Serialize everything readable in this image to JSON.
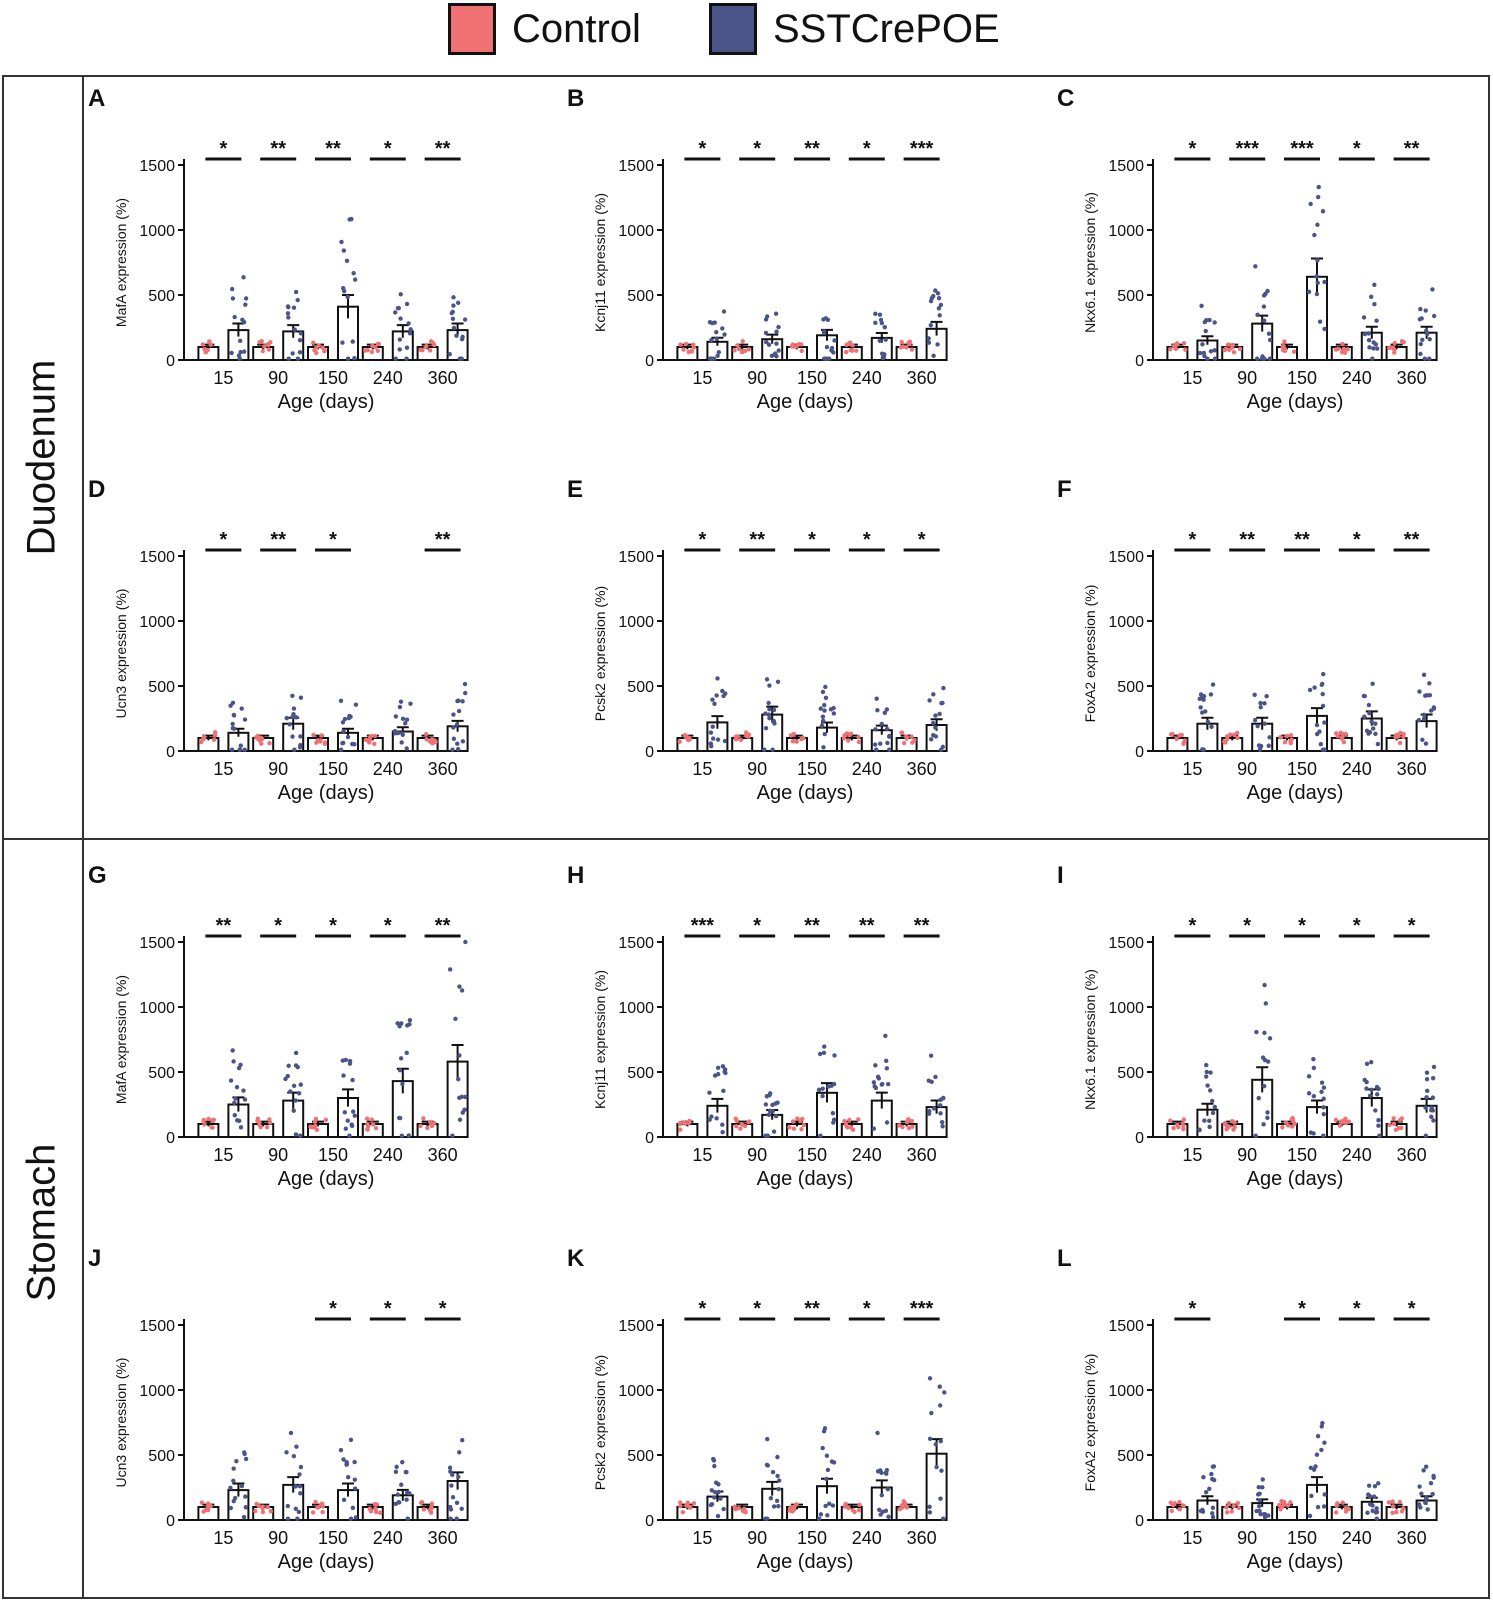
{
  "legend": {
    "items": [
      {
        "label": "Control",
        "color": "#f07174"
      },
      {
        "label": "SSTCrePOE",
        "color": "#4a5488"
      }
    ]
  },
  "sections": {
    "duodenum": "Duodenum",
    "stomach": "Stomach"
  },
  "chart_data": [
    {
      "panel": "A",
      "type": "bar",
      "title": "",
      "ylabel": "MafA expression (%)",
      "xlabel": "Age (days)",
      "categories": [
        "15",
        "90",
        "150",
        "240",
        "360"
      ],
      "ylim": [
        0,
        1500
      ],
      "yticks": [
        0,
        500,
        1000,
        1500
      ],
      "series": [
        {
          "name": "Control",
          "values": [
            100,
            100,
            100,
            100,
            100
          ]
        },
        {
          "name": "SSTCrePOE",
          "values": [
            230,
            220,
            410,
            220,
            230
          ]
        }
      ],
      "significance": [
        "*",
        "**",
        "**",
        "*",
        "**"
      ]
    },
    {
      "panel": "B",
      "type": "bar",
      "title": "",
      "ylabel": "Kcnj11 expression (%)",
      "xlabel": "Age (days)",
      "categories": [
        "15",
        "90",
        "150",
        "240",
        "360"
      ],
      "ylim": [
        0,
        1500
      ],
      "yticks": [
        0,
        500,
        1000,
        1500
      ],
      "series": [
        {
          "name": "Control",
          "values": [
            100,
            100,
            100,
            100,
            100
          ]
        },
        {
          "name": "SSTCrePOE",
          "values": [
            140,
            160,
            190,
            170,
            240
          ]
        }
      ],
      "significance": [
        "*",
        "*",
        "**",
        "*",
        "***"
      ]
    },
    {
      "panel": "C",
      "type": "bar",
      "title": "",
      "ylabel": "Nkx6.1 expression (%)",
      "xlabel": "Age (days)",
      "categories": [
        "15",
        "90",
        "150",
        "240",
        "360"
      ],
      "ylim": [
        0,
        1500
      ],
      "yticks": [
        0,
        500,
        1000,
        1500
      ],
      "series": [
        {
          "name": "Control",
          "values": [
            100,
            100,
            100,
            100,
            100
          ]
        },
        {
          "name": "SSTCrePOE",
          "values": [
            150,
            280,
            640,
            210,
            210
          ]
        }
      ],
      "significance": [
        "*",
        "***",
        "***",
        "*",
        "**"
      ]
    },
    {
      "panel": "D",
      "type": "bar",
      "title": "",
      "ylabel": "Ucn3 expression (%)",
      "xlabel": "Age (days)",
      "categories": [
        "15",
        "90",
        "150",
        "240",
        "360"
      ],
      "ylim": [
        0,
        1500
      ],
      "yticks": [
        0,
        500,
        1000,
        1500
      ],
      "series": [
        {
          "name": "Control",
          "values": [
            100,
            100,
            100,
            100,
            100
          ]
        },
        {
          "name": "SSTCrePOE",
          "values": [
            140,
            210,
            140,
            150,
            190
          ]
        }
      ],
      "significance": [
        "*",
        "**",
        "*",
        "",
        "**"
      ]
    },
    {
      "panel": "E",
      "type": "bar",
      "title": "",
      "ylabel": "Pcsk2 expression (%)",
      "xlabel": "Age (days)",
      "categories": [
        "15",
        "90",
        "150",
        "240",
        "360"
      ],
      "ylim": [
        0,
        1500
      ],
      "yticks": [
        0,
        500,
        1000,
        1500
      ],
      "series": [
        {
          "name": "Control",
          "values": [
            100,
            100,
            100,
            100,
            100
          ]
        },
        {
          "name": "SSTCrePOE",
          "values": [
            220,
            280,
            180,
            160,
            200
          ]
        }
      ],
      "significance": [
        "*",
        "**",
        "*",
        "*",
        "*"
      ]
    },
    {
      "panel": "F",
      "type": "bar",
      "title": "",
      "ylabel": "FoxA2 expression (%)",
      "xlabel": "Age (days)",
      "categories": [
        "15",
        "90",
        "150",
        "240",
        "360"
      ],
      "ylim": [
        0,
        1500
      ],
      "yticks": [
        0,
        500,
        1000,
        1500
      ],
      "series": [
        {
          "name": "Control",
          "values": [
            100,
            100,
            100,
            100,
            100
          ]
        },
        {
          "name": "SSTCrePOE",
          "values": [
            210,
            210,
            270,
            250,
            230
          ]
        }
      ],
      "significance": [
        "*",
        "**",
        "**",
        "*",
        "**"
      ]
    },
    {
      "panel": "G",
      "type": "bar",
      "title": "",
      "ylabel": "MafA expression (%)",
      "xlabel": "Age (days)",
      "categories": [
        "15",
        "90",
        "150",
        "240",
        "360"
      ],
      "ylim": [
        0,
        1500
      ],
      "yticks": [
        0,
        500,
        1000,
        1500
      ],
      "series": [
        {
          "name": "Control",
          "values": [
            100,
            100,
            100,
            100,
            100
          ]
        },
        {
          "name": "SSTCrePOE",
          "values": [
            250,
            280,
            300,
            430,
            580
          ]
        }
      ],
      "significance": [
        "**",
        "*",
        "*",
        "*",
        "**"
      ]
    },
    {
      "panel": "H",
      "type": "bar",
      "title": "",
      "ylabel": "Kcnj11 expression (%)",
      "xlabel": "Age (days)",
      "categories": [
        "15",
        "90",
        "150",
        "240",
        "360"
      ],
      "ylim": [
        0,
        1500
      ],
      "yticks": [
        0,
        500,
        1000,
        1500
      ],
      "series": [
        {
          "name": "Control",
          "values": [
            100,
            100,
            100,
            100,
            100
          ]
        },
        {
          "name": "SSTCrePOE",
          "values": [
            240,
            170,
            340,
            280,
            230
          ]
        }
      ],
      "significance": [
        "***",
        "*",
        "**",
        "**",
        "**"
      ]
    },
    {
      "panel": "I",
      "type": "bar",
      "title": "",
      "ylabel": "Nkx6.1 expression (%)",
      "xlabel": "Age (days)",
      "categories": [
        "15",
        "90",
        "150",
        "240",
        "360"
      ],
      "ylim": [
        0,
        1500
      ],
      "yticks": [
        0,
        500,
        1000,
        1500
      ],
      "series": [
        {
          "name": "Control",
          "values": [
            100,
            100,
            100,
            100,
            100
          ]
        },
        {
          "name": "SSTCrePOE",
          "values": [
            210,
            440,
            230,
            300,
            240
          ]
        }
      ],
      "significance": [
        "*",
        "*",
        "*",
        "*",
        "*"
      ]
    },
    {
      "panel": "J",
      "type": "bar",
      "title": "",
      "ylabel": "Ucn3 expression (%)",
      "xlabel": "Age (days)",
      "categories": [
        "15",
        "90",
        "150",
        "240",
        "360"
      ],
      "ylim": [
        0,
        1500
      ],
      "yticks": [
        0,
        500,
        1000,
        1500
      ],
      "series": [
        {
          "name": "Control",
          "values": [
            100,
            100,
            100,
            100,
            100
          ]
        },
        {
          "name": "SSTCrePOE",
          "values": [
            230,
            270,
            230,
            190,
            300
          ]
        }
      ],
      "significance": [
        "",
        "",
        "*",
        "*",
        "*"
      ]
    },
    {
      "panel": "K",
      "type": "bar",
      "title": "",
      "ylabel": "Pcsk2 expression (%)",
      "xlabel": "Age (days)",
      "categories": [
        "15",
        "90",
        "150",
        "240",
        "360"
      ],
      "ylim": [
        0,
        1500
      ],
      "yticks": [
        0,
        500,
        1000,
        1500
      ],
      "series": [
        {
          "name": "Control",
          "values": [
            100,
            100,
            100,
            100,
            100
          ]
        },
        {
          "name": "SSTCrePOE",
          "values": [
            180,
            240,
            260,
            250,
            510
          ]
        }
      ],
      "significance": [
        "*",
        "*",
        "**",
        "*",
        "***"
      ]
    },
    {
      "panel": "L",
      "type": "bar",
      "title": "",
      "ylabel": "FoxA2 expression (%)",
      "xlabel": "Age (days)",
      "categories": [
        "15",
        "90",
        "150",
        "240",
        "360"
      ],
      "ylim": [
        0,
        1500
      ],
      "yticks": [
        0,
        500,
        1000,
        1500
      ],
      "series": [
        {
          "name": "Control",
          "values": [
            100,
            100,
            100,
            100,
            100
          ]
        },
        {
          "name": "SSTCrePOE",
          "values": [
            150,
            130,
            270,
            140,
            150
          ]
        }
      ],
      "significance": [
        "*",
        "",
        "*",
        "*",
        "*"
      ]
    }
  ]
}
